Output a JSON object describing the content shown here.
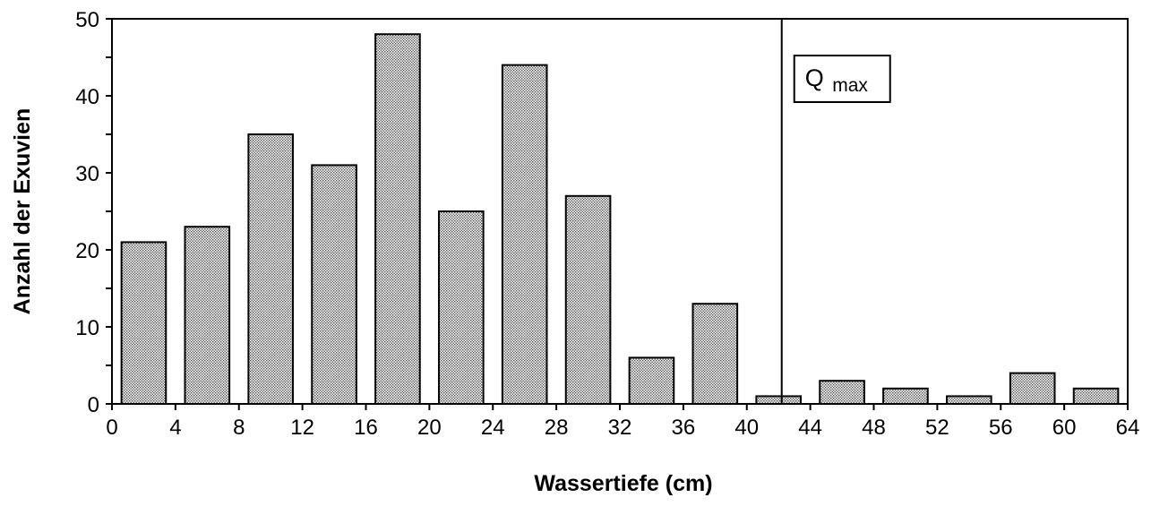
{
  "chart_data": {
    "type": "bar",
    "title": "",
    "xlabel": "Wassertiefe (cm)",
    "ylabel": "Anzahl der Exuvien",
    "xlim": [
      0,
      64
    ],
    "ylim": [
      0,
      50
    ],
    "x_ticks": [
      0,
      4,
      8,
      12,
      16,
      20,
      24,
      28,
      32,
      36,
      40,
      44,
      48,
      52,
      56,
      60,
      64
    ],
    "y_ticks": [
      0,
      10,
      20,
      30,
      40,
      50
    ],
    "x_tick_labels": [
      "0",
      "4",
      "8",
      "12",
      "16",
      "20",
      "24",
      "28",
      "32",
      "36",
      "40",
      "44",
      "48",
      "52",
      "56",
      "60",
      "64"
    ],
    "y_tick_labels": [
      "0",
      "10",
      "20",
      "30",
      "40",
      "50"
    ],
    "bin_width": 4,
    "bins": [
      {
        "from": 0,
        "to": 4,
        "value": 21
      },
      {
        "from": 4,
        "to": 8,
        "value": 23
      },
      {
        "from": 8,
        "to": 12,
        "value": 35
      },
      {
        "from": 12,
        "to": 16,
        "value": 31
      },
      {
        "from": 16,
        "to": 20,
        "value": 48
      },
      {
        "from": 20,
        "to": 24,
        "value": 25
      },
      {
        "from": 24,
        "to": 28,
        "value": 44
      },
      {
        "from": 28,
        "to": 32,
        "value": 27
      },
      {
        "from": 32,
        "to": 36,
        "value": 6
      },
      {
        "from": 36,
        "to": 40,
        "value": 13
      },
      {
        "from": 40,
        "to": 44,
        "value": 1
      },
      {
        "from": 44,
        "to": 48,
        "value": 3
      },
      {
        "from": 48,
        "to": 52,
        "value": 2
      },
      {
        "from": 52,
        "to": 56,
        "value": 1
      },
      {
        "from": 56,
        "to": 60,
        "value": 4
      },
      {
        "from": 60,
        "to": 64,
        "value": 2
      }
    ],
    "reference_line": {
      "x": 42.2,
      "label_main": "Q",
      "label_sub": "max"
    },
    "grid": false,
    "legend": "none",
    "bar_fill": "dotted-gray"
  }
}
